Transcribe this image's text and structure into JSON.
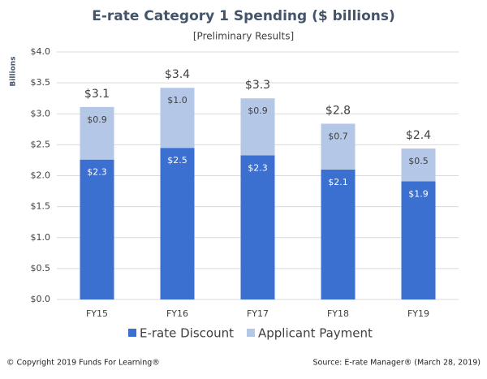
{
  "chart_data": {
    "type": "stacked_bar",
    "title": "E-rate Category 1 Spending ($ billions)",
    "subtitle": "[Preliminary Results]",
    "y_axis_label": "Billions",
    "categories": [
      "FY15",
      "FY16",
      "FY17",
      "FY18",
      "FY19"
    ],
    "series": [
      {
        "name": "E-rate Discount",
        "color": "#3b6fd0",
        "values": [
          2.26,
          2.45,
          2.33,
          2.1,
          1.91
        ],
        "value_labels": [
          "$2.3",
          "$2.5",
          "$2.3",
          "$2.1",
          "$1.9"
        ]
      },
      {
        "name": "Applicant Payment",
        "color": "#b4c7e7",
        "values": [
          0.85,
          0.97,
          0.92,
          0.74,
          0.53
        ],
        "value_labels": [
          "$0.9",
          "$1.0",
          "$0.9",
          "$0.7",
          "$0.5"
        ]
      }
    ],
    "totals": [
      3.11,
      3.42,
      3.25,
      2.84,
      2.44
    ],
    "total_labels": [
      "$3.1",
      "$3.4",
      "$3.3",
      "$2.8",
      "$2.4"
    ],
    "ylim": [
      0,
      4
    ],
    "yticks": [
      {
        "value": 0,
        "label": "$0.0"
      },
      {
        "value": 0.5,
        "label": "$0.5"
      },
      {
        "value": 1,
        "label": "$1.0"
      },
      {
        "value": 1.5,
        "label": "$1.5"
      },
      {
        "value": 2,
        "label": "$2.0"
      },
      {
        "value": 2.5,
        "label": "$2.5"
      },
      {
        "value": 3,
        "label": "$3.0"
      },
      {
        "value": 3.5,
        "label": "$3.5"
      },
      {
        "value": 4,
        "label": "$4.0"
      }
    ],
    "grid": true,
    "legend_position": "bottom",
    "footer_left": "© Copyright 2019 Funds For Learning®",
    "footer_right": "Source: E-rate Manager® (March 28, 2019)"
  }
}
